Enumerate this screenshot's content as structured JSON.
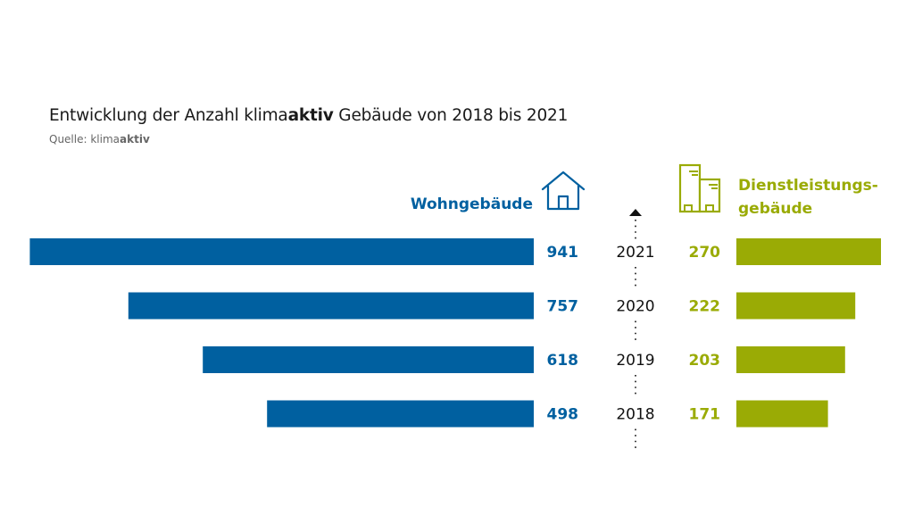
{
  "header": {
    "title_prefix": "Entwicklung der Anzahl klima",
    "title_bold": "aktiv",
    "title_suffix": " Gebäude von 2018 bis 2021",
    "source_prefix": "Quelle: klima",
    "source_bold": "aktiv"
  },
  "colors": {
    "left": "#0060a0",
    "right": "#9aab05",
    "axis": "#111111"
  },
  "icons": {
    "left": "house-icon",
    "right": "office-buildings-icon"
  },
  "chart_data": {
    "type": "bar",
    "orientation": "horizontal-butterfly",
    "title": "Entwicklung der Anzahl klimaaktiv Gebäude von 2018 bis 2021",
    "subtitle": "Quelle: klimaaktiv",
    "categories": [
      "2021",
      "2020",
      "2019",
      "2018"
    ],
    "series": [
      {
        "name": "Wohngebäude",
        "side": "left",
        "values": [
          941,
          757,
          618,
          498
        ]
      },
      {
        "name": "Dienstleistungs-gebäude",
        "name_lines": [
          "Dienstleistungs-",
          "gebäude"
        ],
        "side": "right",
        "values": [
          270,
          222,
          203,
          171
        ]
      }
    ],
    "xlabel": "",
    "ylabel": "",
    "axis_arrow": "up",
    "grid": false,
    "data_labels": true
  }
}
